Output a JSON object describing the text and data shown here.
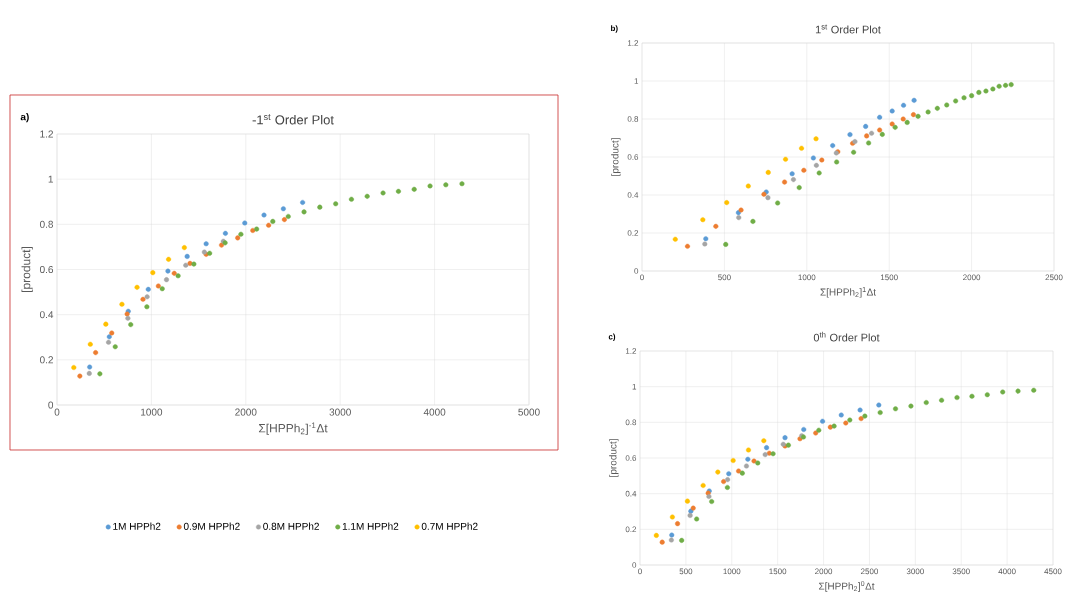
{
  "chart_data": [
    {
      "type": "scatter",
      "title": "-1$^{st}$ Order Plot",
      "xlabel": "Σ[HPPh$_{2}$]$^{-1}$Δt",
      "ylabel": "[product]",
      "annotations": [
        "a)"
      ],
      "xlim": [
        0,
        5000
      ],
      "xticks": [
        0,
        1000,
        2000,
        3000,
        4000,
        5000
      ],
      "ylim": [
        0,
        1.2
      ],
      "yticks": [
        0,
        0.2,
        0.4,
        0.6,
        0.8,
        1,
        1.2
      ],
      "grid": true,
      "marker": "circle",
      "legend": "bottom",
      "series": [
        {
          "name": "1M HPPh2",
          "color": "#5b9bd5",
          "x": [
            346,
            554,
            755,
            967,
            1175,
            1379,
            1580,
            1784,
            1989,
            2193,
            2398,
            2602
          ],
          "values": [
            0.168,
            0.302,
            0.415,
            0.512,
            0.593,
            0.658,
            0.714,
            0.76,
            0.806,
            0.841,
            0.869,
            0.897
          ]
        },
        {
          "name": "0.9M HPPh2",
          "color": "#ed7d31",
          "x": [
            242,
            409,
            580,
            743,
            911,
            1074,
            1242,
            1409,
            1580,
            1743,
            1914,
            2074,
            2242,
            2409
          ],
          "values": [
            0.128,
            0.232,
            0.319,
            0.403,
            0.468,
            0.527,
            0.583,
            0.627,
            0.667,
            0.708,
            0.74,
            0.773,
            0.796,
            0.821
          ]
        },
        {
          "name": "0.8M HPPh2",
          "color": "#a5a5a5",
          "x": [
            342,
            546,
            751,
            955,
            1160,
            1364,
            1561,
            1762
          ],
          "values": [
            0.14,
            0.278,
            0.384,
            0.479,
            0.555,
            0.619,
            0.677,
            0.725
          ]
        },
        {
          "name": "1.1M HPPh2",
          "color": "#70ad47",
          "x": [
            454,
            617,
            781,
            952,
            1115,
            1283,
            1450,
            1617,
            1781,
            1948,
            2115,
            2286,
            2450,
            2617,
            2784,
            2952,
            3119,
            3286,
            3454,
            3617,
            3784,
            3952,
            4119,
            4290
          ],
          "values": [
            0.138,
            0.258,
            0.356,
            0.435,
            0.515,
            0.572,
            0.624,
            0.672,
            0.718,
            0.756,
            0.779,
            0.813,
            0.835,
            0.855,
            0.876,
            0.891,
            0.911,
            0.924,
            0.939,
            0.946,
            0.955,
            0.97,
            0.975,
            0.98
          ]
        },
        {
          "name": "0.7M HPPh2",
          "color": "#ffc000",
          "x": [
            178,
            353,
            517,
            688,
            848,
            1015,
            1182,
            1349
          ],
          "values": [
            0.166,
            0.269,
            0.358,
            0.446,
            0.521,
            0.586,
            0.645,
            0.697
          ]
        }
      ]
    },
    {
      "type": "scatter",
      "title": "1$^{st}$ Order Plot",
      "xlabel": "Σ[HPPh$_{2}$]$^{1}$Δt",
      "ylabel": "[product]",
      "annotations": [
        "b)"
      ],
      "xlim": [
        0,
        2500
      ],
      "xticks": [
        0,
        500,
        1000,
        1500,
        2000,
        2500
      ],
      "ylim": [
        0,
        1.2
      ],
      "yticks": [
        0,
        0.2,
        0.4,
        0.6,
        0.8,
        1,
        1.2
      ],
      "grid": true,
      "marker": "circle",
      "series": [
        {
          "color": "#5b9bd5",
          "x": [
            387,
            585,
            754,
            911,
            1040,
            1157,
            1262,
            1357,
            1442,
            1518,
            1587,
            1651
          ],
          "values": [
            0.17,
            0.307,
            0.416,
            0.512,
            0.595,
            0.66,
            0.718,
            0.761,
            0.809,
            0.842,
            0.872,
            0.898
          ]
        },
        {
          "color": "#ed7d31",
          "x": [
            276,
            448,
            601,
            740,
            865,
            982,
            1091,
            1188,
            1278,
            1363,
            1442,
            1518,
            1585,
            1647
          ],
          "values": [
            0.13,
            0.235,
            0.321,
            0.404,
            0.468,
            0.53,
            0.584,
            0.628,
            0.672,
            0.711,
            0.742,
            0.774,
            0.8,
            0.823
          ]
        },
        {
          "color": "#a5a5a5",
          "x": [
            381,
            587,
            764,
            919,
            1058,
            1179,
            1292,
            1393
          ],
          "values": [
            0.142,
            0.281,
            0.386,
            0.481,
            0.556,
            0.621,
            0.681,
            0.725
          ]
        },
        {
          "color": "#70ad47",
          "x": [
            508,
            673,
            823,
            954,
            1075,
            1181,
            1284,
            1375,
            1458,
            1536,
            1609,
            1675,
            1736,
            1792,
            1849,
            1903,
            1954,
            2000,
            2044,
            2087,
            2129,
            2167,
            2206,
            2240
          ],
          "values": [
            0.14,
            0.261,
            0.358,
            0.439,
            0.516,
            0.574,
            0.625,
            0.674,
            0.719,
            0.756,
            0.782,
            0.814,
            0.837,
            0.856,
            0.874,
            0.895,
            0.912,
            0.923,
            0.94,
            0.947,
            0.958,
            0.972,
            0.977,
            0.981
          ]
        },
        {
          "color": "#ffc000",
          "x": [
            202,
            369,
            514,
            645,
            766,
            871,
            968,
            1056
          ],
          "values": [
            0.167,
            0.27,
            0.36,
            0.447,
            0.519,
            0.588,
            0.646,
            0.696
          ]
        }
      ]
    },
    {
      "type": "scatter",
      "title": "0$^{th}$ Order Plot",
      "xlabel": "Σ[HPPh$_{2}$]$^{0}$Δt",
      "ylabel": "[product]",
      "annotations": [
        "c)"
      ],
      "xlim": [
        0,
        4500
      ],
      "xticks": [
        0,
        500,
        1000,
        1500,
        2000,
        2500,
        3000,
        3500,
        4000,
        4500
      ],
      "ylim": [
        0,
        1.2
      ],
      "yticks": [
        0,
        0.2,
        0.4,
        0.6,
        0.8,
        1,
        1.2
      ],
      "grid": true,
      "marker": "circle",
      "series": [
        {
          "color": "#5b9bd5",
          "x": [
            346,
            554,
            755,
            967,
            1175,
            1379,
            1580,
            1784,
            1989,
            2193,
            2398,
            2602
          ],
          "values": [
            0.168,
            0.302,
            0.415,
            0.512,
            0.593,
            0.658,
            0.714,
            0.76,
            0.806,
            0.841,
            0.869,
            0.897
          ]
        },
        {
          "color": "#ed7d31",
          "x": [
            242,
            409,
            580,
            743,
            911,
            1074,
            1242,
            1409,
            1580,
            1743,
            1914,
            2074,
            2242,
            2409
          ],
          "values": [
            0.128,
            0.232,
            0.319,
            0.403,
            0.468,
            0.527,
            0.583,
            0.627,
            0.667,
            0.708,
            0.74,
            0.773,
            0.796,
            0.821
          ]
        },
        {
          "color": "#a5a5a5",
          "x": [
            342,
            546,
            751,
            955,
            1160,
            1364,
            1561,
            1762
          ],
          "values": [
            0.14,
            0.278,
            0.384,
            0.479,
            0.555,
            0.619,
            0.677,
            0.725
          ]
        },
        {
          "color": "#70ad47",
          "x": [
            454,
            617,
            781,
            952,
            1115,
            1283,
            1450,
            1617,
            1781,
            1948,
            2115,
            2286,
            2450,
            2617,
            2784,
            2952,
            3119,
            3286,
            3454,
            3617,
            3784,
            3952,
            4119,
            4290
          ],
          "values": [
            0.138,
            0.258,
            0.356,
            0.435,
            0.515,
            0.572,
            0.624,
            0.672,
            0.718,
            0.756,
            0.779,
            0.813,
            0.835,
            0.855,
            0.876,
            0.891,
            0.911,
            0.924,
            0.939,
            0.946,
            0.955,
            0.97,
            0.975,
            0.98
          ]
        },
        {
          "color": "#ffc000",
          "x": [
            178,
            353,
            517,
            688,
            848,
            1015,
            1182,
            1349
          ],
          "values": [
            0.166,
            0.269,
            0.358,
            0.446,
            0.521,
            0.586,
            0.645,
            0.697
          ]
        }
      ]
    }
  ]
}
